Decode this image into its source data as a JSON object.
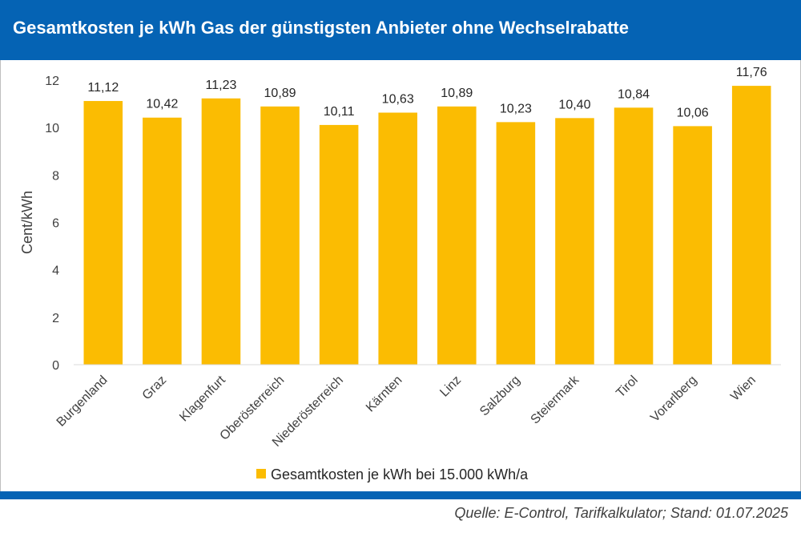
{
  "header": {
    "title": "Gesamtkosten je kWh Gas der günstigsten Anbieter ohne Wechselrabatte"
  },
  "footer": {
    "source": "Quelle: E-Control, Tarifkalkulator; Stand: 01.07.2025"
  },
  "colors": {
    "brand": "#0563b4",
    "bar": "#fbbc02"
  },
  "chart_data": {
    "type": "bar",
    "title": "Gesamtkosten je kWh Gas der günstigsten Anbieter ohne Wechselrabatte",
    "xlabel": "",
    "ylabel": "Cent/kWh",
    "ylim": [
      0,
      12
    ],
    "yticks": [
      0,
      2,
      4,
      6,
      8,
      10,
      12
    ],
    "grid": false,
    "legend_position": "bottom",
    "categories": [
      "Burgenland",
      "Graz",
      "Klagenfurt",
      "Oberösterreich",
      "Niederösterreich",
      "Kärnten",
      "Linz",
      "Salzburg",
      "Steiermark",
      "Tirol",
      "Vorarlberg",
      "Wien"
    ],
    "series": [
      {
        "name": "Gesamtkosten je kWh bei 15.000 kWh/a",
        "values": [
          11.12,
          10.42,
          11.23,
          10.89,
          10.11,
          10.63,
          10.89,
          10.23,
          10.4,
          10.84,
          10.06,
          11.76
        ],
        "labels": [
          "11,12",
          "10,42",
          "11,23",
          "10,89",
          "10,11",
          "10,63",
          "10,89",
          "10,23",
          "10,40",
          "10,84",
          "10,06",
          "11,76"
        ]
      }
    ]
  }
}
